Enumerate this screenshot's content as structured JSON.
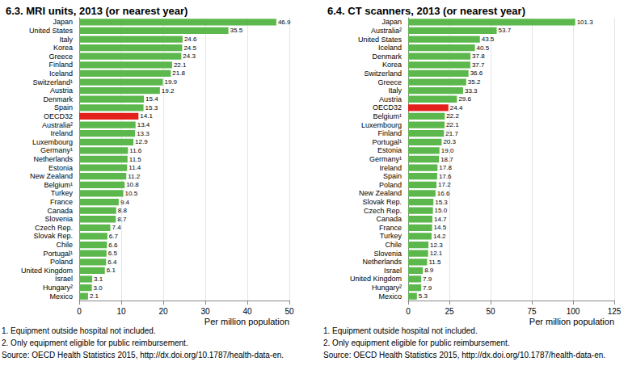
{
  "chart_data": [
    {
      "type": "bar",
      "title": "6.3. MRI units, 2013 (or nearest year)",
      "orientation": "horizontal",
      "categories": [
        "Japan",
        "United States",
        "Italy",
        "Korea",
        "Greece",
        "Finland",
        "Iceland",
        "Switzerland¹",
        "Austria",
        "Denmark",
        "Spain",
        "OECD32",
        "Australia²",
        "Ireland",
        "Luxembourg",
        "Germany¹",
        "Netherlands",
        "Estonia",
        "New Zealand",
        "Belgium¹",
        "Turkey",
        "France",
        "Canada",
        "Slovenia",
        "Czech Rep.",
        "Slovak Rep.",
        "Chile",
        "Portugal¹",
        "Poland",
        "United Kingdom",
        "Israel",
        "Hungary²",
        "Mexico"
      ],
      "values": [
        46.9,
        35.5,
        24.6,
        24.5,
        24.3,
        22.1,
        21.8,
        19.9,
        19.2,
        15.4,
        15.3,
        14.1,
        13.4,
        13.3,
        12.9,
        11.6,
        11.5,
        11.4,
        11.2,
        10.8,
        10.5,
        9.4,
        8.8,
        8.7,
        7.4,
        6.7,
        6.6,
        6.5,
        6.4,
        6.1,
        3.1,
        3.0,
        2.1
      ],
      "value_labels": [
        "46.9",
        "35.5",
        "24.6",
        "24.5",
        "24.3",
        "22.1",
        "21.8",
        "19.9",
        "19.2",
        "15.4",
        "15.3",
        "14.1",
        "13.4",
        "13.3",
        "12.9",
        "11.6",
        "11.5",
        "11.4",
        "11.2",
        "10.8",
        "10.5",
        "9.4",
        "8.8",
        "8.7",
        "7.4",
        "6.7",
        "6.6",
        "6.5",
        "6.4",
        "6.1",
        "3.1",
        "3.0",
        "2.1"
      ],
      "colors": [
        "#5cb84c",
        "#5cb84c",
        "#5cb84c",
        "#5cb84c",
        "#5cb84c",
        "#5cb84c",
        "#5cb84c",
        "#5cb84c",
        "#5cb84c",
        "#5cb84c",
        "#5cb84c",
        "#e2211c",
        "#5cb84c",
        "#5cb84c",
        "#5cb84c",
        "#5cb84c",
        "#5cb84c",
        "#5cb84c",
        "#5cb84c",
        "#5cb84c",
        "#5cb84c",
        "#5cb84c",
        "#5cb84c",
        "#5cb84c",
        "#5cb84c",
        "#5cb84c",
        "#5cb84c",
        "#5cb84c",
        "#5cb84c",
        "#5cb84c",
        "#5cb84c",
        "#5cb84c",
        "#5cb84c"
      ],
      "xlim": [
        0,
        50
      ],
      "xticks": [
        0,
        10,
        20,
        30,
        40,
        50
      ],
      "xlabel": "Per million population",
      "data_labels": true,
      "grid": true,
      "annotations": [
        "1. Equipment outside hospital not included.",
        "2. Only equipment eligible for public reimbursement.",
        "Source: OECD Health Statistics 2015, http://dx.doi.org/10.1787/health-data-en."
      ]
    },
    {
      "type": "bar",
      "title": "6.4. CT scanners, 2013 (or nearest year)",
      "orientation": "horizontal",
      "categories": [
        "Japan",
        "Australia²",
        "United States",
        "Iceland",
        "Denmark",
        "Korea",
        "Switzerland",
        "Greece",
        "Italy",
        "Austria",
        "OECD32",
        "Belgium¹",
        "Luxembourg",
        "Finland",
        "Portugal¹",
        "Estonia",
        "Germany¹",
        "Ireland",
        "Spain",
        "Poland",
        "New Zealand",
        "Slovak Rep.",
        "Czech Rep.",
        "Canada",
        "France",
        "Turkey",
        "Chile",
        "Slovenia",
        "Netherlands",
        "Israel",
        "United Kingdom",
        "Hungary²",
        "Mexico"
      ],
      "values": [
        101.3,
        53.7,
        43.5,
        40.5,
        37.8,
        37.7,
        36.6,
        35.2,
        33.3,
        29.6,
        24.4,
        22.2,
        22.1,
        21.7,
        20.3,
        19.0,
        18.7,
        17.8,
        17.6,
        17.2,
        16.6,
        15.3,
        15.0,
        14.7,
        14.5,
        14.2,
        12.3,
        12.1,
        11.5,
        8.9,
        7.9,
        7.9,
        5.3
      ],
      "value_labels": [
        "101.3",
        "53.7",
        "43.5",
        "40.5",
        "37.8",
        "37.7",
        "36.6",
        "35.2",
        "33.3",
        "29.6",
        "24.4",
        "22.2",
        "22.1",
        "21.7",
        "20.3",
        "19.0",
        "18.7",
        "17.8",
        "17.6",
        "17.2",
        "16.6",
        "15.3",
        "15.0",
        "14.7",
        "14.5",
        "14.2",
        "12.3",
        "12.1",
        "11.5",
        "8.9",
        "7.9",
        "7.9",
        "5.3"
      ],
      "colors": [
        "#5cb84c",
        "#5cb84c",
        "#5cb84c",
        "#5cb84c",
        "#5cb84c",
        "#5cb84c",
        "#5cb84c",
        "#5cb84c",
        "#5cb84c",
        "#5cb84c",
        "#e2211c",
        "#5cb84c",
        "#5cb84c",
        "#5cb84c",
        "#5cb84c",
        "#5cb84c",
        "#5cb84c",
        "#5cb84c",
        "#5cb84c",
        "#5cb84c",
        "#5cb84c",
        "#5cb84c",
        "#5cb84c",
        "#5cb84c",
        "#5cb84c",
        "#5cb84c",
        "#5cb84c",
        "#5cb84c",
        "#5cb84c",
        "#5cb84c",
        "#5cb84c",
        "#5cb84c",
        "#5cb84c"
      ],
      "xlim": [
        0,
        125
      ],
      "xticks": [
        0,
        25,
        50,
        75,
        100,
        125
      ],
      "xlabel": "Per million population",
      "data_labels": true,
      "grid": true,
      "annotations": [
        "1. Equipment outside hospital not included.",
        "2. Only equipment eligible for public reimbursement.",
        "Source: OECD Health Statistics 2015, http://dx.doi.org/10.1787/health-data-en."
      ]
    }
  ]
}
